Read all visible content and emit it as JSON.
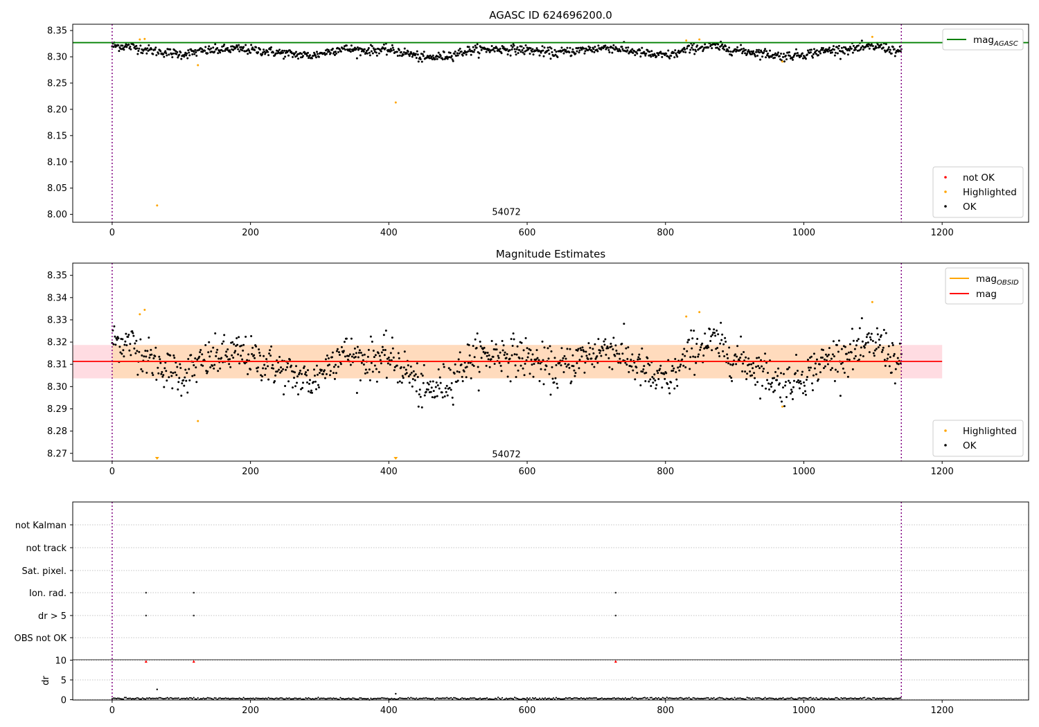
{
  "chart_data": [
    {
      "type": "scatter",
      "title": "AGASC ID 624696200.0",
      "xlabel": "",
      "ylabel": "",
      "xlim": [
        -57,
        1325
      ],
      "ylim": [
        7.985,
        8.362
      ],
      "xticks": [
        0,
        200,
        400,
        600,
        800,
        1000,
        1200
      ],
      "yticks": [
        8.0,
        8.05,
        8.1,
        8.15,
        8.2,
        8.25,
        8.3,
        8.35
      ],
      "ytick_labels": [
        "8.00",
        "8.05",
        "8.10",
        "8.15",
        "8.20",
        "8.25",
        "8.30",
        "8.35"
      ],
      "grid": false,
      "obsid_lines_x": [
        0,
        1141
      ],
      "obsid_label": {
        "text": "54072",
        "x": 570,
        "y": 8.0
      },
      "hline": {
        "name": "mag_AGASC",
        "y": 8.327,
        "color": "#008000"
      },
      "legend_lines": {
        "position": "upper right",
        "entries": [
          {
            "label": "mag",
            "sub": "AGASC",
            "color": "#008000"
          }
        ]
      },
      "legend_markers": {
        "position": "lower right",
        "entries": [
          {
            "label": "not OK",
            "color": "#ff0000"
          },
          {
            "label": "Highlighted",
            "color": "#ffa500"
          },
          {
            "label": "OK",
            "color": "#000000"
          }
        ]
      },
      "ok_series": {
        "name": "OK",
        "n": 1142,
        "x_range": [
          0,
          1141
        ],
        "mean": 8.311,
        "color": "#000000",
        "knots_x": [
          0,
          30,
          60,
          100,
          140,
          180,
          220,
          260,
          290,
          330,
          360,
          400,
          430,
          450,
          480,
          520,
          560,
          600,
          640,
          680,
          720,
          760,
          790,
          810,
          840,
          870,
          900,
          940,
          970,
          1000,
          1040,
          1080,
          1110,
          1141
        ],
        "knots_y": [
          8.321,
          8.319,
          8.311,
          8.305,
          8.312,
          8.315,
          8.311,
          8.305,
          8.302,
          8.316,
          8.312,
          8.313,
          8.306,
          8.297,
          8.301,
          8.313,
          8.315,
          8.313,
          8.307,
          8.313,
          8.318,
          8.309,
          8.302,
          8.304,
          8.317,
          8.32,
          8.313,
          8.307,
          8.301,
          8.305,
          8.313,
          8.316,
          8.32,
          8.308
        ],
        "scatter_sd": 0.0045
      },
      "highlighted_points": [
        [
          40,
          8.333
        ],
        [
          47,
          8.334
        ],
        [
          65,
          8.017
        ],
        [
          124,
          8.284
        ],
        [
          410,
          8.213
        ],
        [
          830,
          8.331
        ],
        [
          849,
          8.333
        ],
        [
          969,
          8.291
        ],
        [
          1099,
          8.338
        ]
      ]
    },
    {
      "type": "scatter",
      "title": "Magnitude Estimates",
      "xlabel": "",
      "ylabel": "",
      "xlim": [
        -57,
        1325
      ],
      "ylim": [
        8.2665,
        8.3555
      ],
      "xticks": [
        0,
        200,
        400,
        600,
        800,
        1000,
        1200
      ],
      "yticks": [
        8.27,
        8.28,
        8.29,
        8.3,
        8.31,
        8.32,
        8.33,
        8.34,
        8.35
      ],
      "ytick_labels": [
        "8.27",
        "8.28",
        "8.29",
        "8.30",
        "8.31",
        "8.32",
        "8.33",
        "8.34",
        "8.35"
      ],
      "grid": false,
      "obsid_lines_x": [
        0,
        1141
      ],
      "obsid_label": {
        "text": "54072",
        "x": 570,
        "y": 8.2695
      },
      "mag_line": {
        "name": "mag",
        "y": 8.3113,
        "x_range": [
          -57,
          1200
        ],
        "band": [
          8.3037,
          8.3187
        ],
        "color": "#ff0000",
        "band_color": "#ffc0cb"
      },
      "mag_obsid_line": {
        "name": "mag_OBSID",
        "y": 8.3113,
        "x_range": [
          0,
          1141
        ],
        "band": [
          8.3037,
          8.3187
        ],
        "color": "#ffa500",
        "band_color": "#ffdab9"
      },
      "legend_lines": {
        "position": "upper right",
        "entries": [
          {
            "label": "mag",
            "sub": "OBSID",
            "color": "#ffa500"
          },
          {
            "label": "mag",
            "sub": "",
            "color": "#ff0000"
          }
        ]
      },
      "legend_markers": {
        "position": "lower right",
        "entries": [
          {
            "label": "Highlighted",
            "color": "#ffa500"
          },
          {
            "label": "OK",
            "color": "#000000"
          }
        ]
      },
      "highlighted_points": [
        [
          40,
          8.3325
        ],
        [
          47,
          8.3345
        ],
        [
          124,
          8.2845
        ],
        [
          830,
          8.3315
        ],
        [
          849,
          8.3335
        ],
        [
          969,
          8.291
        ],
        [
          1099,
          8.338
        ]
      ],
      "out_of_range_points": [
        [
          65,
          8.017
        ],
        [
          410,
          8.213
        ]
      ]
    },
    {
      "type": "scatter",
      "title": "",
      "xlim": [
        -57,
        1325
      ],
      "xticks": [
        0,
        200,
        400,
        600,
        800,
        1000,
        1200
      ],
      "obsid_lines_x": [
        0,
        1141
      ],
      "flag_rows": [
        "not Kalman",
        "not track",
        "Sat. pixel.",
        "Ion. rad.",
        "dr > 5",
        "OBS not OK"
      ],
      "flag_points": [
        {
          "flag": "Ion. rad.",
          "x": [
            49,
            118,
            728
          ]
        },
        {
          "flag": "dr > 5",
          "x": [
            49,
            118,
            728
          ]
        }
      ],
      "dr_panel": {
        "ylabel": "dr",
        "ylim": [
          -0.6,
          10.6
        ],
        "yticks": [
          0,
          5,
          10
        ],
        "ytick_labels": [
          "0",
          "5",
          "10"
        ],
        "typical_dr": 0.3,
        "large_points": [
          [
            49,
            9.7
          ],
          [
            118,
            9.7
          ],
          [
            728,
            9.7
          ]
        ],
        "large_color": "#ff0000",
        "other_points": [
          [
            65,
            2.6
          ],
          [
            410,
            1.5
          ]
        ]
      }
    }
  ]
}
